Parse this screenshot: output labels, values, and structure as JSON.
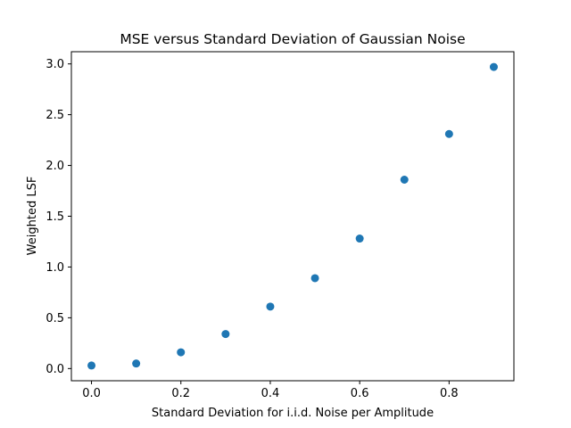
{
  "chart_data": {
    "type": "scatter",
    "title": "MSE versus Standard Deviation of Gaussian Noise",
    "xlabel": "Standard Deviation for i.i.d. Noise per Amplitude",
    "ylabel": "Weighted LSF",
    "xlim": [
      -0.045,
      0.945
    ],
    "ylim": [
      -0.12,
      3.12
    ],
    "xticks": [
      0.0,
      0.2,
      0.4,
      0.6,
      0.8
    ],
    "xtick_labels": [
      "0.0",
      "0.2",
      "0.4",
      "0.6",
      "0.8"
    ],
    "yticks": [
      0.0,
      0.5,
      1.0,
      1.5,
      2.0,
      2.5,
      3.0
    ],
    "ytick_labels": [
      "0.0",
      "0.5",
      "1.0",
      "1.5",
      "2.0",
      "2.5",
      "3.0"
    ],
    "grid": false,
    "color": "#1f77b4",
    "points": [
      {
        "x": 0.0,
        "y": 0.03
      },
      {
        "x": 0.1,
        "y": 0.05
      },
      {
        "x": 0.2,
        "y": 0.16
      },
      {
        "x": 0.3,
        "y": 0.34
      },
      {
        "x": 0.4,
        "y": 0.61
      },
      {
        "x": 0.5,
        "y": 0.89
      },
      {
        "x": 0.6,
        "y": 1.28
      },
      {
        "x": 0.7,
        "y": 1.86
      },
      {
        "x": 0.8,
        "y": 2.31
      },
      {
        "x": 0.9,
        "y": 2.97
      }
    ]
  }
}
